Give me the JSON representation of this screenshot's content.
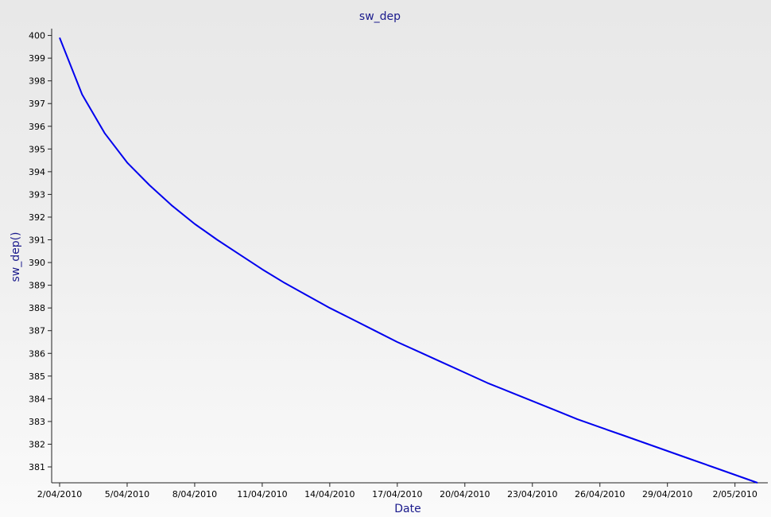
{
  "chart_data": {
    "type": "line",
    "title": "sw_dep",
    "xlabel": "Date",
    "ylabel": "sw_dep()",
    "x_ticks": [
      "2/04/2010",
      "5/04/2010",
      "8/04/2010",
      "11/04/2010",
      "14/04/2010",
      "17/04/2010",
      "20/04/2010",
      "23/04/2010",
      "26/04/2010",
      "29/04/2010",
      "2/05/2010"
    ],
    "y_ticks": [
      381,
      382,
      383,
      384,
      385,
      386,
      387,
      388,
      389,
      390,
      391,
      392,
      393,
      394,
      395,
      396,
      397,
      398,
      399,
      400
    ],
    "ylim": [
      380.3,
      400.3
    ],
    "xlim": [
      "2010-04-02",
      "2010-05-03"
    ],
    "grid": false,
    "series": [
      {
        "color": "#0000ee",
        "x": [
          "2010-04-02",
          "2010-04-03",
          "2010-04-04",
          "2010-04-05",
          "2010-04-06",
          "2010-04-07",
          "2010-04-08",
          "2010-04-09",
          "2010-04-10",
          "2010-04-11",
          "2010-04-12",
          "2010-04-13",
          "2010-04-14",
          "2010-04-15",
          "2010-04-16",
          "2010-04-17",
          "2010-04-18",
          "2010-04-19",
          "2010-04-20",
          "2010-04-21",
          "2010-04-22",
          "2010-04-23",
          "2010-04-24",
          "2010-04-25",
          "2010-04-26",
          "2010-04-27",
          "2010-04-28",
          "2010-04-29",
          "2010-04-30",
          "2010-05-01",
          "2010-05-02",
          "2010-05-03"
        ],
        "values": [
          399.9,
          397.4,
          395.7,
          394.4,
          393.4,
          392.5,
          391.7,
          391.0,
          390.35,
          389.7,
          389.1,
          388.55,
          388.0,
          387.5,
          387.0,
          386.5,
          386.05,
          385.6,
          385.15,
          384.7,
          384.3,
          383.9,
          383.5,
          383.1,
          382.75,
          382.4,
          382.05,
          381.7,
          381.35,
          381.0,
          380.65,
          380.3
        ]
      }
    ]
  }
}
